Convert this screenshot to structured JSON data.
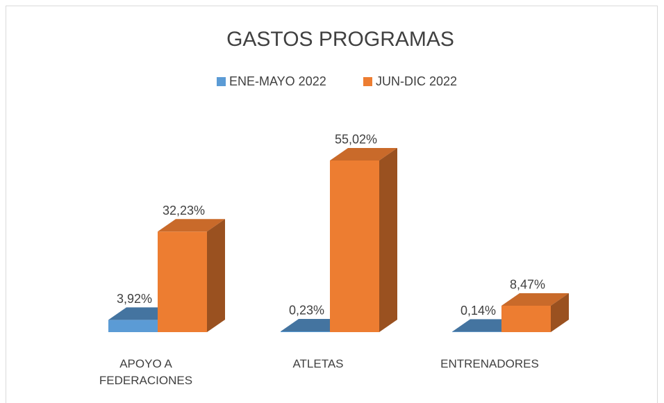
{
  "chart_data": {
    "type": "bar3d",
    "title": "GASTOS PROGRAMAS",
    "categories": [
      "APOYO A FEDERACIONES",
      "ATLETAS",
      "ENTRENADORES"
    ],
    "series": [
      {
        "name": "ENE-MAYO 2022",
        "color": "#5b9bd5",
        "values": [
          3.92,
          0.23,
          0.14
        ],
        "value_labels": [
          "3,92%",
          "0,23%",
          "0,14%"
        ]
      },
      {
        "name": "JUN-DIC 2022",
        "color": "#ed7d31",
        "values": [
          32.23,
          55.02,
          8.47
        ],
        "value_labels": [
          "32,23%",
          "55,02%",
          "8,47%"
        ]
      }
    ],
    "legend": "top"
  }
}
